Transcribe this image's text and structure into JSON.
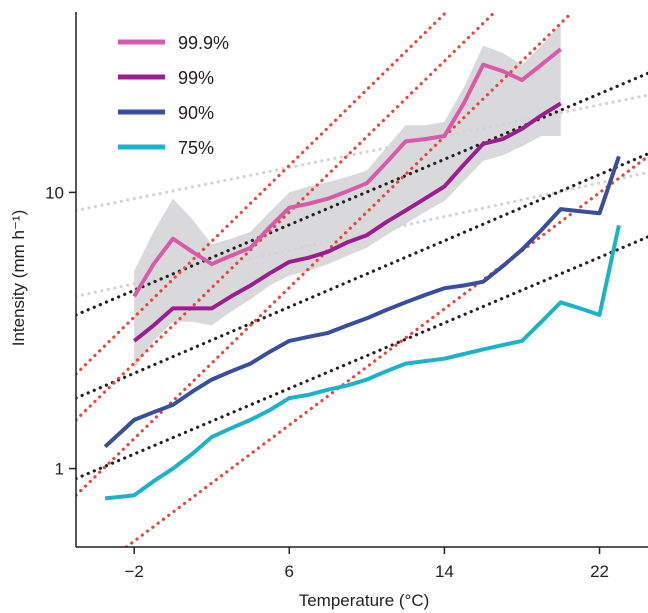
{
  "chart_data": {
    "type": "line",
    "title": "",
    "xlabel": "Temperature (°C)",
    "ylabel": "Intensity (mm h⁻¹)",
    "xlim": [
      -5,
      24.5
    ],
    "ylim": [
      0.52,
      45
    ],
    "yscale": "log",
    "x_ticks": [
      -2,
      6,
      14,
      22
    ],
    "x_tick_labels": [
      "−2",
      "6",
      "14",
      "22"
    ],
    "y_ticks": [
      1,
      10
    ],
    "y_tick_labels": [
      "1",
      "10"
    ],
    "grid": false,
    "legend_position": "top-left",
    "series": [
      {
        "name": "99.9%",
        "color": "#d95aa8",
        "x": [
          -2,
          -1,
          0,
          1,
          2,
          3,
          4,
          5,
          6,
          7,
          8,
          9,
          10,
          11,
          12,
          13,
          14,
          15,
          16,
          17,
          18,
          19,
          20
        ],
        "values": [
          4.2,
          5.5,
          6.8,
          6.1,
          5.5,
          5.9,
          6.3,
          7.5,
          8.8,
          9.1,
          9.5,
          10.1,
          10.8,
          12.8,
          15.3,
          15.6,
          16.0,
          21.0,
          29.0,
          27.5,
          25.5,
          29.0,
          33.0
        ]
      },
      {
        "name": "99%",
        "color": "#9c1d8f",
        "x": [
          -2,
          -1,
          0,
          1,
          2,
          3,
          4,
          5,
          6,
          7,
          8,
          9,
          10,
          11,
          12,
          13,
          14,
          15,
          16,
          17,
          18,
          19,
          20
        ],
        "values": [
          2.9,
          3.3,
          3.8,
          3.8,
          3.8,
          4.2,
          4.6,
          5.1,
          5.6,
          5.8,
          6.1,
          6.6,
          7.0,
          7.8,
          8.6,
          9.5,
          10.5,
          12.6,
          15.0,
          15.6,
          17.0,
          19.0,
          21.0
        ]
      },
      {
        "name": "90%",
        "color": "#3a4ea0",
        "x": [
          -3.5,
          -2,
          -1,
          0,
          1,
          2,
          3,
          4,
          5,
          6,
          7,
          8,
          9,
          10,
          11,
          12,
          13,
          14,
          15,
          16,
          17,
          18,
          19,
          20,
          21,
          22,
          23
        ],
        "values": [
          1.2,
          1.5,
          1.6,
          1.7,
          1.9,
          2.1,
          2.25,
          2.4,
          2.65,
          2.9,
          3.0,
          3.1,
          3.3,
          3.5,
          3.75,
          4.0,
          4.25,
          4.5,
          4.6,
          4.75,
          5.4,
          6.2,
          7.3,
          8.7,
          8.55,
          8.4,
          13.5
        ]
      },
      {
        "name": "75%",
        "color": "#1bb3c8",
        "x": [
          -3.5,
          -2,
          -1,
          0,
          1,
          2,
          3,
          4,
          5,
          6,
          7,
          8,
          9,
          10,
          11,
          12,
          13,
          14,
          15,
          16,
          17,
          18,
          19,
          20,
          21,
          22,
          23
        ],
        "values": [
          0.78,
          0.8,
          0.9,
          1.0,
          1.13,
          1.3,
          1.4,
          1.5,
          1.63,
          1.8,
          1.85,
          1.93,
          2.0,
          2.1,
          2.25,
          2.4,
          2.45,
          2.5,
          2.6,
          2.7,
          2.8,
          2.9,
          3.4,
          4.0,
          3.8,
          3.6,
          7.6
        ]
      }
    ],
    "uncertainty_bands": [
      {
        "color": "#d9d9db",
        "x": [
          -2,
          -1,
          0,
          1,
          2,
          3,
          4,
          5,
          6,
          7,
          8,
          9,
          10,
          11,
          12,
          13,
          14,
          15,
          16,
          17,
          18,
          19,
          20
        ],
        "lower": [
          2.3,
          2.9,
          3.4,
          3.4,
          3.3,
          3.7,
          4.1,
          4.6,
          5.0,
          5.2,
          5.5,
          5.9,
          6.3,
          7.0,
          7.7,
          8.5,
          9.3,
          11.0,
          13.0,
          13.6,
          14.7,
          16.0,
          16.0
        ],
        "upper": [
          5.2,
          7.2,
          9.5,
          8.0,
          6.5,
          6.8,
          7.2,
          8.5,
          10.0,
          10.5,
          10.9,
          11.4,
          12.0,
          14.5,
          17.5,
          17.5,
          18.0,
          24.0,
          34.0,
          32.0,
          29.0,
          34.0,
          41.0
        ]
      }
    ],
    "reference_lines": [
      {
        "style": "dotted",
        "color": "#d4d4d4",
        "points": [
          [
            -5,
            8.6
          ],
          [
            24.5,
            22.5
          ]
        ]
      },
      {
        "style": "dotted",
        "color": "#d4d4d4",
        "points": [
          [
            -5,
            4.2
          ],
          [
            24.5,
            11.8
          ]
        ]
      },
      {
        "style": "dotted",
        "color": "#222222",
        "points": [
          [
            -5,
            3.6
          ],
          [
            24.5,
            27.0
          ]
        ]
      },
      {
        "style": "dotted",
        "color": "#222222",
        "points": [
          [
            -5,
            1.8
          ],
          [
            24.5,
            13.8
          ]
        ]
      },
      {
        "style": "dotted",
        "color": "#222222",
        "points": [
          [
            -5,
            0.92
          ],
          [
            24.5,
            6.9
          ]
        ]
      },
      {
        "style": "dotted",
        "color": "#e8453c",
        "points": [
          [
            -5,
            2.2
          ],
          [
            14.1,
            45
          ]
        ]
      },
      {
        "style": "dotted",
        "color": "#e8453c",
        "points": [
          [
            -5,
            1.5
          ],
          [
            16.6,
            45
          ]
        ]
      },
      {
        "style": "dotted",
        "color": "#e8453c",
        "points": [
          [
            -5,
            0.8
          ],
          [
            20.6,
            45
          ]
        ]
      },
      {
        "style": "dotted",
        "color": "#e8453c",
        "points": [
          [
            -2.4,
            0.52
          ],
          [
            24.5,
            13.5
          ]
        ]
      }
    ]
  }
}
